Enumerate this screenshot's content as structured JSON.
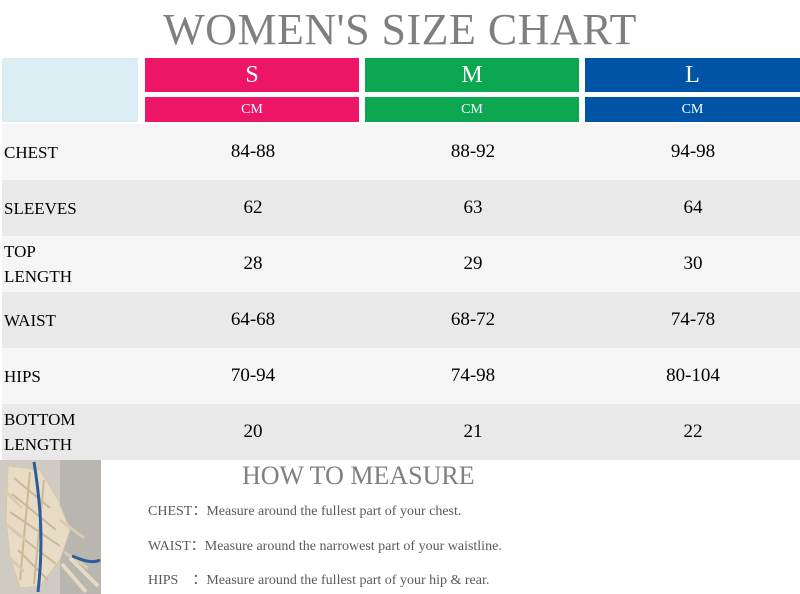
{
  "title": "WOMEN'S SIZE CHART",
  "colors": {
    "s": "#ec1566",
    "m": "#0ca750",
    "l": "#0054a6"
  },
  "sizes": [
    {
      "label": "S",
      "unit": "CM"
    },
    {
      "label": "M",
      "unit": "CM"
    },
    {
      "label": "L",
      "unit": "CM"
    }
  ],
  "rows": [
    {
      "label": "CHEST",
      "values": [
        "84-88",
        "88-92",
        "94-98"
      ]
    },
    {
      "label": "SLEEVES",
      "values": [
        "62",
        "63",
        "64"
      ]
    },
    {
      "label": "TOP LENGTH",
      "values": [
        "28",
        "29",
        "30"
      ]
    },
    {
      "label": "WAIST",
      "values": [
        "64-68",
        "68-72",
        "74-78"
      ]
    },
    {
      "label": "HIPS",
      "values": [
        "70-94",
        "74-98",
        "80-104"
      ]
    },
    {
      "label": "BOTTOM LENGTH",
      "values": [
        "20",
        "21",
        "22"
      ]
    }
  ],
  "how_to": {
    "title": "HOW TO MEASURE",
    "chest": "CHEST：Measure around the fullest part of your chest.",
    "waist": "WAIST：Measure around the narrowest part of your waistline.",
    "hips": "HIPS　：Measure around the fullest part of your hip & rear."
  }
}
